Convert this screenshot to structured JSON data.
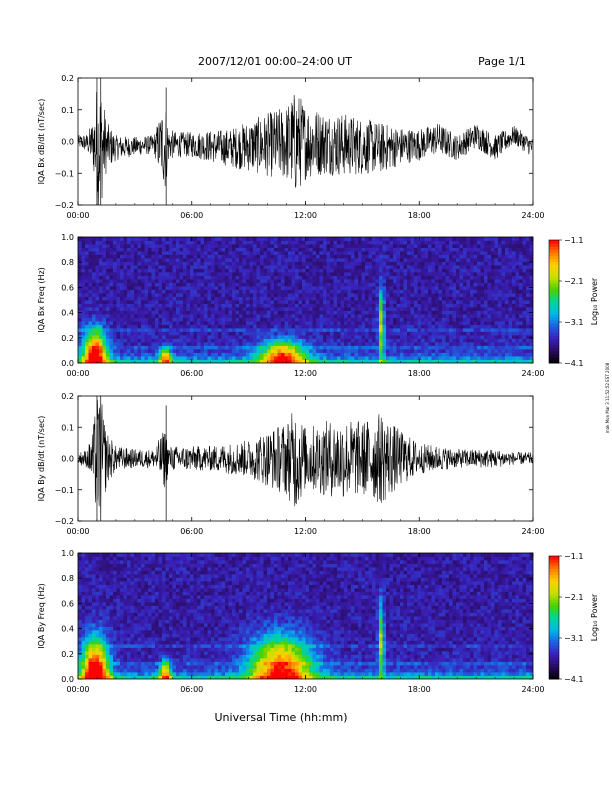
{
  "header": {
    "title": "2007/12/01  00:00–24:00 UT",
    "page": "Page 1/1"
  },
  "footer": {
    "xlabel": "Universal Time (hh:mm)",
    "side_note": "mak Mon Mar 3 11:52:52 EST 2008"
  },
  "colors": {
    "trace": "#000000",
    "background": "#ffffff",
    "colormap": [
      "#000000",
      "#2a0a5e",
      "#3a1fb8",
      "#1f5fe0",
      "#00b7e8",
      "#00d59a",
      "#4cd000",
      "#c8e000",
      "#ffd000",
      "#ff7a00",
      "#ff0000"
    ]
  },
  "chart_data": [
    {
      "id": "bx-dbdt",
      "type": "line",
      "title": "",
      "xlabel": "",
      "ylabel": "IQA Bx dB/dt (nT/sec)",
      "xlim": [
        0,
        24
      ],
      "ylim": [
        -0.2,
        0.2
      ],
      "xticks": [
        "00:00",
        "06:00",
        "12:00",
        "18:00",
        "24:00"
      ],
      "yticks": [
        "0.2",
        "0.1",
        "0.0",
        "−0.1",
        "−0.2"
      ],
      "envelope": {
        "x": [
          0,
          0.5,
          0.8,
          1.0,
          1.2,
          1.5,
          2.0,
          3.0,
          4.0,
          4.6,
          4.8,
          5.2,
          6.0,
          7.0,
          8.0,
          9.0,
          10.0,
          11.0,
          11.5,
          12.0,
          13.0,
          14.0,
          15.0,
          16.0,
          17.0,
          18.0,
          19.0,
          20.0,
          21.0,
          22.0,
          23.0,
          24.0
        ],
        "y": [
          0.02,
          0.03,
          0.08,
          0.2,
          0.2,
          0.08,
          0.04,
          0.03,
          0.03,
          0.15,
          0.05,
          0.04,
          0.04,
          0.05,
          0.06,
          0.08,
          0.1,
          0.12,
          0.17,
          0.12,
          0.1,
          0.1,
          0.09,
          0.08,
          0.06,
          0.05,
          0.05,
          0.04,
          0.04,
          0.04,
          0.03,
          0.03
        ]
      },
      "baseline": {
        "x": [
          0,
          2,
          4,
          6,
          8,
          10,
          12,
          14,
          16,
          18,
          19,
          20,
          21,
          22,
          23,
          24
        ],
        "y": [
          0.0,
          -0.02,
          -0.01,
          -0.01,
          -0.02,
          -0.01,
          0.0,
          -0.01,
          -0.02,
          -0.01,
          0.01,
          -0.02,
          0.02,
          -0.02,
          0.02,
          -0.02
        ]
      }
    },
    {
      "id": "bx-spec",
      "type": "heatmap",
      "title": "",
      "xlabel": "",
      "ylabel": "IQA Bx Freq (Hz)",
      "xlim": [
        0,
        24
      ],
      "ylim": [
        0,
        1.0
      ],
      "xticks": [
        "00:00",
        "06:00",
        "12:00",
        "18:00",
        "24:00"
      ],
      "yticks": [
        "1.0",
        "0.8",
        "0.6",
        "0.4",
        "0.2",
        "0.0"
      ],
      "colorbar": {
        "label": "Log₁₀ Power",
        "range": [
          -4.1,
          -1.1
        ],
        "ticks": [
          "−1.1",
          "−2.1",
          "−3.1",
          "−4.1"
        ]
      },
      "hot_spots": [
        {
          "t": 0.9,
          "f": 0.05,
          "df": 0.2,
          "dt": 0.6,
          "level": 0.9
        },
        {
          "t": 4.6,
          "f": 0.04,
          "df": 0.08,
          "dt": 0.3,
          "level": 0.6
        },
        {
          "t": 10.8,
          "f": 0.05,
          "df": 0.12,
          "dt": 1.2,
          "level": 0.7
        },
        {
          "t": 16.0,
          "f": 0.3,
          "df": 0.3,
          "dt": 0.15,
          "level": 0.5
        }
      ]
    },
    {
      "id": "by-dbdt",
      "type": "line",
      "title": "",
      "xlabel": "",
      "ylabel": "IQA By dB/dt (nT/sec)",
      "xlim": [
        0,
        24
      ],
      "ylim": [
        -0.2,
        0.2
      ],
      "xticks": [
        "00:00",
        "06:00",
        "12:00",
        "18:00",
        "24:00"
      ],
      "yticks": [
        "0.2",
        "0.1",
        "0.0",
        "−0.1",
        "−0.2"
      ],
      "envelope": {
        "x": [
          0,
          0.5,
          0.8,
          1.0,
          1.2,
          1.5,
          2.0,
          3.0,
          4.0,
          4.6,
          4.8,
          5.2,
          6.0,
          7.0,
          8.0,
          9.0,
          10.0,
          11.0,
          11.5,
          12.0,
          13.0,
          14.0,
          15.0,
          16.0,
          17.0,
          18.0,
          19.0,
          20.0,
          21.0,
          22.0,
          23.0,
          24.0
        ],
        "y": [
          0.02,
          0.03,
          0.1,
          0.2,
          0.2,
          0.09,
          0.04,
          0.03,
          0.03,
          0.1,
          0.04,
          0.04,
          0.04,
          0.04,
          0.05,
          0.06,
          0.09,
          0.12,
          0.17,
          0.1,
          0.12,
          0.13,
          0.12,
          0.15,
          0.09,
          0.05,
          0.04,
          0.03,
          0.03,
          0.03,
          0.02,
          0.02
        ]
      },
      "baseline": {
        "x": [
          0,
          24
        ],
        "y": [
          0.0,
          0.0
        ]
      }
    },
    {
      "id": "by-spec",
      "type": "heatmap",
      "title": "",
      "xlabel": "Universal Time (hh:mm)",
      "ylabel": "IQA By Freq (Hz)",
      "xlim": [
        0,
        24
      ],
      "ylim": [
        0,
        1.0
      ],
      "xticks": [
        "00:00",
        "06:00",
        "12:00",
        "18:00",
        "24:00"
      ],
      "yticks": [
        "1.0",
        "0.8",
        "0.6",
        "0.4",
        "0.2",
        "0.0"
      ],
      "colorbar": {
        "label": "Log₁₀ Power",
        "range": [
          -4.1,
          -1.1
        ],
        "ticks": [
          "−1.1",
          "−2.1",
          "−3.1",
          "−4.1"
        ]
      },
      "hot_spots": [
        {
          "t": 0.9,
          "f": 0.06,
          "df": 0.25,
          "dt": 0.7,
          "level": 0.9
        },
        {
          "t": 4.6,
          "f": 0.04,
          "df": 0.1,
          "dt": 0.3,
          "level": 0.6
        },
        {
          "t": 10.7,
          "f": 0.08,
          "df": 0.25,
          "dt": 1.6,
          "level": 0.75
        },
        {
          "t": 16.0,
          "f": 0.3,
          "df": 0.3,
          "dt": 0.15,
          "level": 0.5
        }
      ]
    }
  ]
}
